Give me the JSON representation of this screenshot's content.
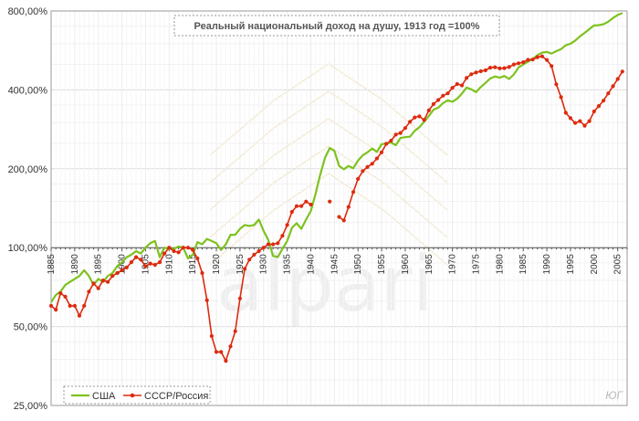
{
  "chart_data": {
    "type": "line",
    "title": "Реальный национальный доход на душу, 1913 год =100%",
    "y_scale": "log",
    "ylim": [
      25,
      800
    ],
    "y_ticks": [
      {
        "value": 800,
        "label": "800,00%"
      },
      {
        "value": 400,
        "label": "400,00%"
      },
      {
        "value": 200,
        "label": "200,00%"
      },
      {
        "value": 100,
        "label": "100,00%"
      },
      {
        "value": 50,
        "label": "50,00%"
      },
      {
        "value": 25,
        "label": "25,00%"
      }
    ],
    "xlim": [
      1885,
      2007
    ],
    "x_tick_labels": [
      "1885",
      "1890",
      "1895",
      "1900",
      "1905",
      "1910",
      "1915",
      "1920",
      "1925",
      "1930",
      "1935",
      "1940",
      "1945",
      "1950",
      "1955",
      "1960",
      "1965",
      "1970",
      "1975",
      "1980",
      "1985",
      "1990",
      "1995",
      "2000",
      "2005"
    ],
    "grid": true,
    "legend_position": "bottom-left",
    "watermark": "alpari",
    "corner_mark": "ЮГ",
    "series": [
      {
        "name": "США",
        "color": "#7dc21e",
        "marker": "none",
        "points": [
          [
            1885,
            62
          ],
          [
            1886,
            66
          ],
          [
            1887,
            68
          ],
          [
            1888,
            72
          ],
          [
            1889,
            74
          ],
          [
            1890,
            76
          ],
          [
            1891,
            78
          ],
          [
            1892,
            82
          ],
          [
            1893,
            78
          ],
          [
            1894,
            72
          ],
          [
            1895,
            76
          ],
          [
            1896,
            74
          ],
          [
            1897,
            78
          ],
          [
            1898,
            80
          ],
          [
            1899,
            85
          ],
          [
            1900,
            88
          ],
          [
            1901,
            92
          ],
          [
            1902,
            94
          ],
          [
            1903,
            97
          ],
          [
            1904,
            95
          ],
          [
            1905,
            100
          ],
          [
            1906,
            104
          ],
          [
            1907,
            106
          ],
          [
            1908,
            92
          ],
          [
            1909,
            100
          ],
          [
            1910,
            99
          ],
          [
            1911,
            99
          ],
          [
            1912,
            101
          ],
          [
            1913,
            100
          ],
          [
            1914,
            91
          ],
          [
            1915,
            94
          ],
          [
            1916,
            105
          ],
          [
            1917,
            103
          ],
          [
            1918,
            108
          ],
          [
            1919,
            106
          ],
          [
            1920,
            104
          ],
          [
            1921,
            98
          ],
          [
            1922,
            103
          ],
          [
            1923,
            112
          ],
          [
            1924,
            112
          ],
          [
            1925,
            118
          ],
          [
            1926,
            122
          ],
          [
            1927,
            121
          ],
          [
            1928,
            122
          ],
          [
            1929,
            128
          ],
          [
            1930,
            116
          ],
          [
            1931,
            107
          ],
          [
            1932,
            93
          ],
          [
            1933,
            92
          ],
          [
            1934,
            99
          ],
          [
            1935,
            106
          ],
          [
            1936,
            119
          ],
          [
            1937,
            124
          ],
          [
            1938,
            118
          ],
          [
            1939,
            128
          ],
          [
            1940,
            138
          ],
          [
            1941,
            160
          ],
          [
            1942,
            190
          ],
          [
            1943,
            220
          ],
          [
            1944,
            240
          ],
          [
            1945,
            234
          ],
          [
            1946,
            205
          ],
          [
            1947,
            199
          ],
          [
            1948,
            205
          ],
          [
            1949,
            201
          ],
          [
            1950,
            215
          ],
          [
            1951,
            225
          ],
          [
            1952,
            231
          ],
          [
            1953,
            239
          ],
          [
            1954,
            232
          ],
          [
            1955,
            248
          ],
          [
            1956,
            250
          ],
          [
            1957,
            252
          ],
          [
            1958,
            246
          ],
          [
            1959,
            262
          ],
          [
            1960,
            264
          ],
          [
            1961,
            265
          ],
          [
            1962,
            279
          ],
          [
            1963,
            288
          ],
          [
            1964,
            302
          ],
          [
            1965,
            318
          ],
          [
            1966,
            336
          ],
          [
            1967,
            342
          ],
          [
            1968,
            356
          ],
          [
            1969,
            365
          ],
          [
            1970,
            360
          ],
          [
            1971,
            370
          ],
          [
            1972,
            387
          ],
          [
            1973,
            408
          ],
          [
            1974,
            402
          ],
          [
            1975,
            392
          ],
          [
            1976,
            410
          ],
          [
            1977,
            425
          ],
          [
            1978,
            442
          ],
          [
            1979,
            450
          ],
          [
            1980,
            445
          ],
          [
            1981,
            452
          ],
          [
            1982,
            440
          ],
          [
            1983,
            458
          ],
          [
            1984,
            487
          ],
          [
            1985,
            500
          ],
          [
            1986,
            512
          ],
          [
            1987,
            525
          ],
          [
            1988,
            542
          ],
          [
            1989,
            555
          ],
          [
            1990,
            558
          ],
          [
            1991,
            550
          ],
          [
            1992,
            562
          ],
          [
            1993,
            572
          ],
          [
            1994,
            592
          ],
          [
            1995,
            600
          ],
          [
            1996,
            617
          ],
          [
            1997,
            640
          ],
          [
            1998,
            660
          ],
          [
            1999,
            682
          ],
          [
            2000,
            705
          ],
          [
            2001,
            706
          ],
          [
            2002,
            712
          ],
          [
            2003,
            728
          ],
          [
            2004,
            752
          ],
          [
            2005,
            772
          ],
          [
            2006,
            785
          ]
        ]
      },
      {
        "name": "СССР/Россия",
        "color": "#dd2a0e",
        "marker": "dot",
        "points": [
          [
            1885,
            60
          ],
          [
            1886,
            58
          ],
          [
            1887,
            67
          ],
          [
            1888,
            65
          ],
          [
            1889,
            60
          ],
          [
            1890,
            60
          ],
          [
            1891,
            55
          ],
          [
            1892,
            60
          ],
          [
            1893,
            68
          ],
          [
            1894,
            73
          ],
          [
            1895,
            70
          ],
          [
            1896,
            75
          ],
          [
            1897,
            74
          ],
          [
            1898,
            78
          ],
          [
            1899,
            80
          ],
          [
            1900,
            82
          ],
          [
            1901,
            84
          ],
          [
            1902,
            88
          ],
          [
            1903,
            92
          ],
          [
            1904,
            90
          ],
          [
            1905,
            85
          ],
          [
            1906,
            87
          ],
          [
            1907,
            86
          ],
          [
            1908,
            88
          ],
          [
            1909,
            95
          ],
          [
            1910,
            100
          ],
          [
            1911,
            97
          ],
          [
            1912,
            96
          ],
          [
            1913,
            100
          ],
          [
            1914,
            100
          ],
          [
            1915,
            98
          ],
          [
            1916,
            91
          ],
          [
            1917,
            80
          ],
          [
            1918,
            63
          ],
          [
            1919,
            46
          ],
          [
            1920,
            40
          ],
          [
            1921,
            40
          ],
          [
            1922,
            37
          ],
          [
            1923,
            42
          ],
          [
            1924,
            48
          ],
          [
            1925,
            64
          ],
          [
            1926,
            83
          ],
          [
            1927,
            90
          ],
          [
            1928,
            94
          ],
          [
            1929,
            97
          ],
          [
            1930,
            100
          ],
          [
            1931,
            103
          ],
          [
            1932,
            103
          ],
          [
            1933,
            104
          ],
          [
            1934,
            111
          ],
          [
            1935,
            122
          ],
          [
            1936,
            137
          ],
          [
            1937,
            144
          ],
          [
            1938,
            144
          ],
          [
            1939,
            150
          ],
          [
            1940,
            146
          ],
          null,
          [
            1944,
            150
          ],
          null,
          [
            1946,
            131
          ],
          [
            1947,
            127
          ],
          [
            1948,
            143
          ],
          [
            1949,
            163
          ],
          [
            1950,
            183
          ],
          [
            1951,
            196
          ],
          [
            1952,
            203
          ],
          [
            1953,
            209
          ],
          [
            1954,
            219
          ],
          [
            1955,
            231
          ],
          [
            1956,
            249
          ],
          [
            1957,
            256
          ],
          [
            1958,
            270
          ],
          [
            1959,
            274
          ],
          [
            1960,
            286
          ],
          [
            1961,
            302
          ],
          [
            1962,
            314
          ],
          [
            1963,
            317
          ],
          [
            1964,
            307
          ],
          [
            1965,
            334
          ],
          [
            1966,
            353
          ],
          [
            1967,
            366
          ],
          [
            1968,
            380
          ],
          [
            1969,
            388
          ],
          [
            1970,
            407
          ],
          [
            1971,
            421
          ],
          [
            1972,
            416
          ],
          [
            1973,
            444
          ],
          [
            1974,
            459
          ],
          [
            1975,
            466
          ],
          [
            1976,
            471
          ],
          [
            1977,
            475
          ],
          [
            1978,
            486
          ],
          [
            1979,
            488
          ],
          [
            1980,
            483
          ],
          [
            1981,
            484
          ],
          [
            1982,
            489
          ],
          [
            1983,
            500
          ],
          [
            1984,
            505
          ],
          [
            1985,
            510
          ],
          [
            1986,
            521
          ],
          [
            1987,
            522
          ],
          [
            1988,
            533
          ],
          [
            1989,
            537
          ],
          [
            1990,
            520
          ],
          [
            1991,
            493
          ],
          [
            1992,
            420
          ],
          [
            1993,
            375
          ],
          [
            1994,
            327
          ],
          [
            1995,
            312
          ],
          [
            1996,
            299
          ],
          [
            1997,
            304
          ],
          [
            1998,
            292
          ],
          [
            1999,
            304
          ],
          [
            2000,
            331
          ],
          [
            2001,
            347
          ],
          [
            2002,
            364
          ],
          [
            2003,
            388
          ],
          [
            2004,
            413
          ],
          [
            2005,
            440
          ],
          [
            2006,
            470
          ]
        ]
      }
    ]
  }
}
